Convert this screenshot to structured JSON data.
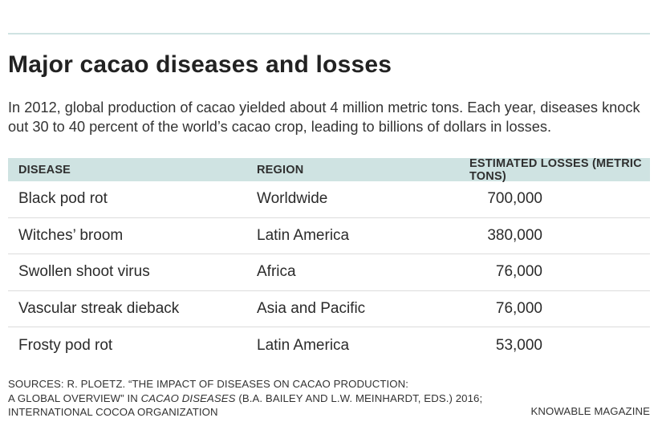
{
  "title": "Major cacao diseases and losses",
  "intro": "In 2012, global production of cacao yielded about 4 million metric tons. Each year, diseases knock out 30 to 40 percent of the world’s cacao crop, leading to billions of dollars in losses.",
  "table": {
    "headers": {
      "disease": "DISEASE",
      "region": "REGION",
      "losses": "ESTIMATED LOSSES (METRIC TONS)"
    },
    "rows": [
      {
        "disease": "Black pod rot",
        "region": "Worldwide",
        "losses": "700,000"
      },
      {
        "disease": "Witches’ broom",
        "region": "Latin America",
        "losses": "380,000"
      },
      {
        "disease": "Swollen shoot virus",
        "region": "Africa",
        "losses": "76,000"
      },
      {
        "disease": "Vascular streak dieback",
        "region": "Asia and Pacific",
        "losses": "76,000"
      },
      {
        "disease": "Frosty pod rot",
        "region": "Latin America",
        "losses": "53,000"
      }
    ]
  },
  "sources": {
    "line1": "SOURCES: R. PLOETZ. “THE IMPACT OF DISEASES ON CACAO PRODUCTION:",
    "line2_a": "A GLOBAL OVERVIEW” IN ",
    "line2_italic": "CACAO DISEASES",
    "line2_b": " (B.A. BAILEY AND L.W. MEINHARDT, EDS.) 2016;",
    "line3": "INTERNATIONAL COCOA ORGANIZATION"
  },
  "credit": "KNOWABLE MAGAZINE",
  "colors": {
    "accent": "#cfe3e2",
    "text": "#222222",
    "row_divider": "#dcdcdc"
  }
}
